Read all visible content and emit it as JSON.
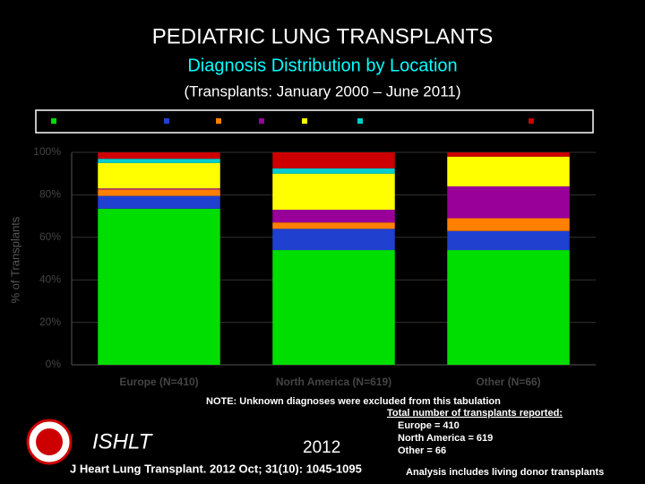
{
  "chart_data": {
    "type": "stacked_bar",
    "title": "PEDIATRIC LUNG TRANSPLANTS",
    "subtitle": "Diagnosis Distribution by Location",
    "period": "(Transplants: January 2000 – June 2011)",
    "y_label": "% of Transplants",
    "categories": [
      "Europe (N=410)",
      "North America (N=619)",
      "Other (N=66)"
    ],
    "series": [
      {
        "color": "#00dd00",
        "values": [
          73.5,
          54,
          54
        ]
      },
      {
        "color": "#2040d0",
        "values": [
          6,
          10,
          9
        ]
      },
      {
        "color": "#ff8000",
        "values": [
          3,
          3,
          6
        ]
      },
      {
        "color": "#990099",
        "values": [
          0.5,
          6,
          15
        ]
      },
      {
        "color": "#ffff00",
        "values": [
          12,
          17,
          14
        ]
      },
      {
        "color": "#00cccc",
        "values": [
          2,
          2.5,
          0
        ]
      },
      {
        "color": "#cc0000",
        "values": [
          3,
          7.5,
          2
        ]
      }
    ],
    "ylim": [
      0,
      100
    ],
    "yticks": [
      {
        "value": 0,
        "label": "0%"
      },
      {
        "value": 20,
        "label": "20%"
      },
      {
        "value": 40,
        "label": "40%"
      },
      {
        "value": 60,
        "label": "60%"
      },
      {
        "value": 80,
        "label": "80%"
      },
      {
        "value": 100,
        "label": "100%"
      }
    ],
    "grid": true
  },
  "footer": {
    "note": "NOTE: Unknown diagnoses were excluded from this tabulation",
    "totals": [
      "Total number of transplants reported:",
      "Europe = 410",
      "North America = 619",
      "Other = 66"
    ],
    "org": "ISHLT",
    "year": "2012",
    "citation": "J Heart Lung Transplant. 2012 Oct; 31(10): 1045-1095",
    "analysis": "Analysis includes living donor transplants"
  }
}
